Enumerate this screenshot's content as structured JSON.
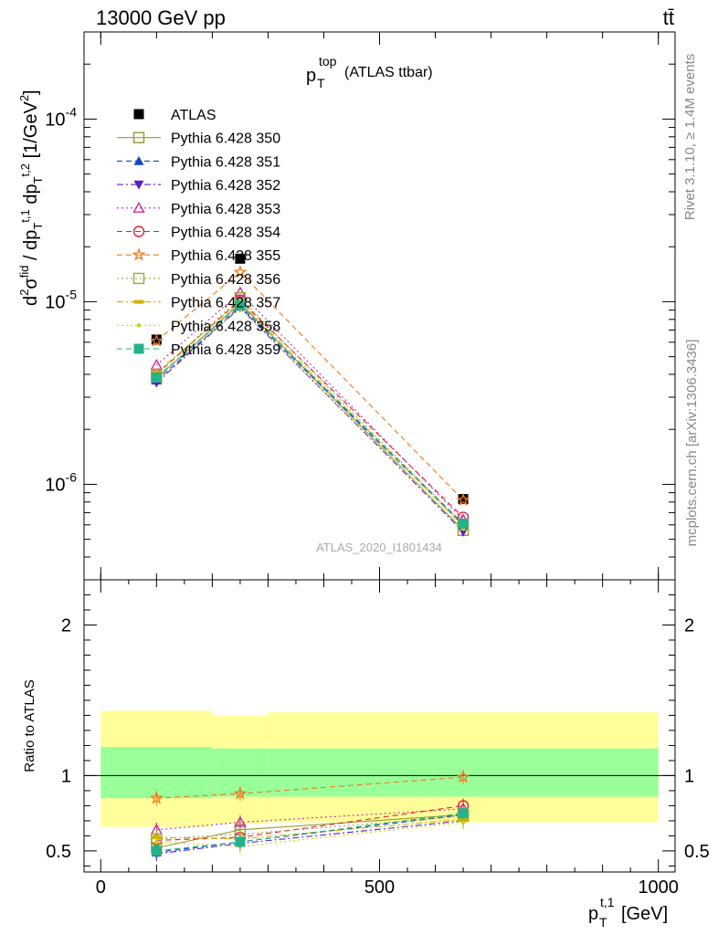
{
  "header": {
    "left": "13000 GeV pp",
    "right": "tt̄"
  },
  "side_labels": {
    "rivet": "Rivet 3.1.10, ≥ 1.4M events",
    "mcplots": "mcplots.cern.ch [arXiv:1306.3436]"
  },
  "watermark": "ATLAS_2020_I1801434",
  "colors": {
    "band_yellow": "#ffff99",
    "band_green": "#99ff99",
    "data": "#000000"
  },
  "chart_data": [
    {
      "type": "line",
      "panel": "main",
      "title": "p_T^top (ATLAS ttbar)",
      "ylabel": "d^2σ^{fid}/dp_T^{t,1} d p_T^{t,2} [1/GeV^2]",
      "xlim": [
        -30,
        1030
      ],
      "ylim": [
        3e-07,
        0.0003
      ],
      "yscale": "log",
      "y_tick_labels": [
        "10^-6",
        "10^-5",
        "10^-4"
      ],
      "legend_position": "top-left",
      "x": [
        100,
        250,
        650
      ],
      "series": [
        {
          "name": "ATLAS",
          "color": "#000000",
          "marker": "square-filled",
          "dash": "none",
          "values": [
            6.2e-06,
            1.72e-05,
            8.3e-07
          ]
        },
        {
          "name": "Pythia 6.428 350",
          "color": "#999933",
          "marker": "square-open",
          "dash": "solid",
          "values": [
            3.8e-06,
            9.8e-06,
            5.6e-07
          ]
        },
        {
          "name": "Pythia 6.428 351",
          "color": "#1447c8",
          "marker": "triangle-up-filled",
          "dash": "dashed",
          "values": [
            3.7e-06,
            9.4e-06,
            6e-07
          ]
        },
        {
          "name": "Pythia 6.428 352",
          "color": "#5a1fc8",
          "marker": "triangle-down-filled",
          "dash": "dashdot",
          "values": [
            3.6e-06,
            9.3e-06,
            5.5e-07
          ]
        },
        {
          "name": "Pythia 6.428 353",
          "color": "#cc2a99",
          "marker": "triangle-up-open",
          "dash": "dotted",
          "values": [
            4.5e-06,
            1.12e-05,
            6.4e-07
          ]
        },
        {
          "name": "Pythia 6.428 354",
          "color": "#e01f3c",
          "marker": "circle-open",
          "dash": "dashed",
          "values": [
            4e-06,
            1.02e-05,
            6.6e-07
          ]
        },
        {
          "name": "Pythia 6.428 355",
          "color": "#f07a1a",
          "marker": "star-open",
          "dash": "dashed",
          "values": [
            6.1e-06,
            1.45e-05,
            8.2e-07
          ]
        },
        {
          "name": "Pythia 6.428 356",
          "color": "#99aa33",
          "marker": "square-open",
          "dash": "dotted",
          "values": [
            4e-06,
            1.05e-05,
            6e-07
          ]
        },
        {
          "name": "Pythia 6.428 357",
          "color": "#d4b000",
          "marker": "dash-marker",
          "dash": "dashdot",
          "values": [
            4.1e-06,
            1e-05,
            5.9e-07
          ]
        },
        {
          "name": "Pythia 6.428 358",
          "color": "#c8d400",
          "marker": "dot",
          "dash": "dotted",
          "values": [
            3.9e-06,
            9.1e-06,
            5.7e-07
          ]
        },
        {
          "name": "Pythia 6.428 359",
          "color": "#22b38c",
          "marker": "square-filled",
          "dash": "dashed",
          "values": [
            3.85e-06,
            9.6e-06,
            6.1e-07
          ]
        }
      ]
    },
    {
      "type": "line",
      "panel": "ratio",
      "ylabel": "Ratio to ATLAS",
      "xlabel": "p_T^{t,1} [GeV]",
      "xlim": [
        -30,
        1030
      ],
      "ylim": [
        0.36,
        2.3
      ],
      "y_ticks": [
        0.5,
        1,
        2
      ],
      "y_tick_labels": [
        "0.5",
        "1",
        "2"
      ],
      "x_ticks": [
        0,
        500,
        1000
      ],
      "x_tick_labels": [
        "0",
        "500",
        "1000"
      ],
      "bands": {
        "bin_edges": [
          0,
          200,
          300,
          1000
        ],
        "green": {
          "lo": [
            0.85,
            0.86,
            0.86
          ],
          "hi": [
            1.19,
            1.18,
            1.18
          ]
        },
        "yellow": {
          "lo": [
            0.66,
            0.68,
            0.69
          ],
          "hi": [
            1.43,
            1.4,
            1.42
          ]
        }
      },
      "x": [
        100,
        250,
        650
      ],
      "series": [
        {
          "name": "Pythia 6.428 350",
          "values": [
            0.52,
            0.64,
            0.74
          ]
        },
        {
          "name": "Pythia 6.428 351",
          "values": [
            0.49,
            0.56,
            0.74
          ]
        },
        {
          "name": "Pythia 6.428 352",
          "values": [
            0.48,
            0.55,
            0.7
          ]
        },
        {
          "name": "Pythia 6.428 353",
          "values": [
            0.64,
            0.69,
            0.78
          ]
        },
        {
          "name": "Pythia 6.428 354",
          "values": [
            0.57,
            0.59,
            0.8
          ]
        },
        {
          "name": "Pythia 6.428 355",
          "values": [
            0.85,
            0.88,
            0.99
          ]
        },
        {
          "name": "Pythia 6.428 356",
          "values": [
            0.58,
            0.61,
            0.73
          ]
        },
        {
          "name": "Pythia 6.428 357",
          "values": [
            0.59,
            0.58,
            0.71
          ]
        },
        {
          "name": "Pythia 6.428 358",
          "values": [
            0.56,
            0.53,
            0.69
          ]
        },
        {
          "name": "Pythia 6.428 359",
          "values": [
            0.5,
            0.56,
            0.75
          ]
        }
      ]
    }
  ]
}
